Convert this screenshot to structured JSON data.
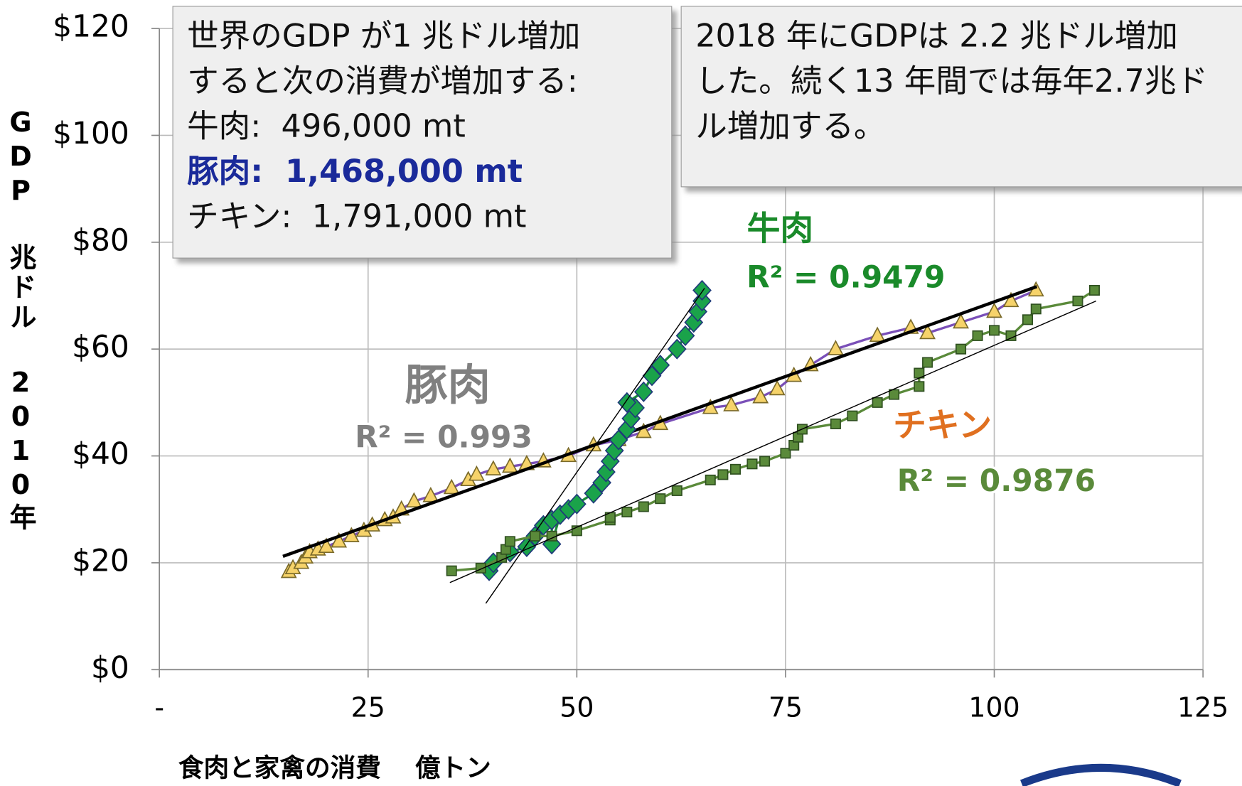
{
  "chart_data": {
    "type": "scatter",
    "xlabel": "食肉と家禽の消費　 億トン",
    "ylabel": "GDP 兆ドル 2010年",
    "xlim": [
      0,
      125
    ],
    "ylim": [
      0,
      120
    ],
    "xticks": [
      {
        "value": 0,
        "label": "-"
      },
      25,
      50,
      75,
      100,
      125
    ],
    "yticks": [
      {
        "value": 0,
        "label": "$0"
      },
      {
        "value": 20,
        "label": "$20"
      },
      {
        "value": 40,
        "label": "$40"
      },
      {
        "value": 60,
        "label": "$60"
      },
      {
        "value": 80,
        "label": "$80"
      },
      {
        "value": 100,
        "label": "$100"
      },
      {
        "value": 120,
        "label": "$120"
      }
    ],
    "grid": true,
    "series": [
      {
        "name": "豚肉",
        "r2_label": "R² = 0.993",
        "label_color": "#808080",
        "marker": "triangle",
        "color": "#f6d36a",
        "edge_color": "#7a6a2a",
        "line_color": "#7a4fb8",
        "trend_color": "#000000",
        "x": [
          15.5,
          16,
          17,
          17.5,
          18,
          19,
          20,
          21.5,
          23,
          24.5,
          25.5,
          27,
          28,
          29,
          30.5,
          32.5,
          35,
          37,
          38,
          40,
          42,
          44,
          46,
          49,
          52,
          55,
          58,
          60,
          66,
          68.5,
          72,
          74,
          76,
          78,
          81,
          86,
          90,
          92,
          96,
          100,
          102,
          105
        ],
        "y": [
          18.3,
          19,
          20,
          21,
          22,
          22.5,
          23,
          24,
          25,
          26,
          27,
          28,
          28.5,
          30,
          31.5,
          32.5,
          34,
          35.5,
          36.5,
          37.5,
          38,
          38.5,
          39,
          40,
          42,
          43,
          44.5,
          46,
          49,
          49.5,
          51,
          52.5,
          55,
          57,
          60,
          62.5,
          64,
          63,
          65,
          67,
          69,
          71
        ],
        "trend_x": [
          14.8,
          105.1
        ],
        "trend_y": [
          21.2,
          71.7
        ]
      },
      {
        "name": "牛肉",
        "r2_label": "R² = 0.9479",
        "label_color": "#1a8a2a",
        "marker": "diamond",
        "color": "#1aa34a",
        "edge_color": "#1f3a7a",
        "line_color": "#1a8a3a",
        "trend_color": "#000000",
        "x": [
          39.5,
          40,
          42,
          44,
          45,
          46,
          47,
          47,
          48,
          49,
          50,
          52,
          53,
          53.5,
          54,
          54.5,
          55,
          56,
          56.5,
          57,
          56,
          58,
          59,
          60,
          62,
          63,
          64,
          64.5,
          65,
          65
        ],
        "y": [
          18.5,
          20,
          22,
          23,
          25,
          27,
          28,
          23.5,
          29,
          30,
          31,
          33,
          35,
          37,
          39,
          41,
          43,
          45,
          47,
          49,
          50,
          52,
          55,
          57,
          60,
          62.5,
          65,
          67,
          69,
          71
        ],
        "trend_x": [
          39.1,
          65.3
        ],
        "trend_y": [
          12.4,
          71.4
        ]
      },
      {
        "name": "チキン",
        "r2_label": "R² = 0.9876",
        "label_color": "#e07020",
        "marker": "square",
        "color": "#5a8a3a",
        "edge_color": "#2f5020",
        "line_color": "#5a8a3a",
        "trend_color": "#000000",
        "x": [
          35,
          38.5,
          41,
          41.5,
          42,
          45,
          47,
          50,
          54,
          54,
          56,
          58,
          60,
          62,
          66,
          67.5,
          69,
          71,
          72.5,
          75,
          76,
          76.5,
          77,
          81,
          83,
          86,
          88,
          91,
          91,
          92,
          96,
          98,
          100,
          102,
          104,
          105,
          110,
          112
        ],
        "y": [
          18.5,
          19,
          21,
          22.5,
          24,
          25,
          25,
          26,
          28,
          28.5,
          29.5,
          30.5,
          32,
          33.5,
          35.5,
          36.5,
          37.5,
          38.5,
          39,
          40.5,
          42,
          43.5,
          45,
          46,
          47.5,
          50,
          51.5,
          53,
          55.5,
          57.5,
          60,
          62.5,
          63.5,
          62.5,
          65.5,
          67.5,
          69,
          71
        ],
        "trend_x": [
          34.8,
          112.2
        ],
        "trend_y": [
          16.3,
          69
        ]
      }
    ],
    "notes": [
      {
        "lines": [
          "世界のGDP が1 兆ドル増加",
          "すると次の消費が増加する:",
          "牛肉:  496,000 mt",
          "豚肉:  1,468,000 mt",
          "チキン:  1,791,000 mt"
        ]
      },
      {
        "lines": [
          "2018 年にGDPは 2.2 兆ドル増加",
          "した。続く13 年間では毎年2.7兆ド",
          "ル増加する。"
        ]
      }
    ]
  }
}
